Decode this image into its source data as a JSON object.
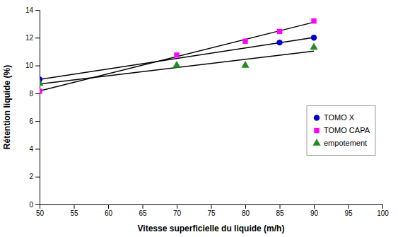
{
  "chart_data": {
    "type": "scatter",
    "xlabel": "Vitesse superficielle du liquide (m/h)",
    "ylabel": "Rétention liquide (%)",
    "xlim": [
      50,
      100
    ],
    "ylim": [
      0,
      14
    ],
    "xticks": [
      50,
      55,
      60,
      65,
      70,
      75,
      80,
      85,
      90,
      95,
      100
    ],
    "yticks": [
      0,
      2,
      4,
      6,
      8,
      10,
      12,
      14
    ],
    "grid": false,
    "legend": "right",
    "series": [
      {
        "name": "TOMO X",
        "type": "scatter",
        "color": "#0000cc",
        "marker": "circle",
        "x": [
          50,
          85,
          90
        ],
        "values": [
          9.0,
          11.65,
          12.0
        ]
      },
      {
        "name": "TOMO CAPA",
        "type": "scatter",
        "color": "#ff00ff",
        "marker": "square",
        "x": [
          50,
          70,
          80,
          85,
          90
        ],
        "values": [
          8.15,
          10.75,
          11.75,
          12.45,
          13.2
        ]
      },
      {
        "name": "empotement",
        "type": "scatter",
        "color": "#228B22",
        "marker": "triangle",
        "x": [
          50,
          70,
          80,
          90
        ],
        "values": [
          8.7,
          10.0,
          10.0,
          11.3
        ]
      },
      {
        "type": "line",
        "color": "#000000",
        "line_style": "solid",
        "x": [
          50,
          90
        ],
        "values": [
          9.001754,
          12.012281
        ]
      },
      {
        "type": "line",
        "color": "#000000",
        "line_style": "solid",
        "x": [
          50,
          90
        ],
        "values": [
          8.16625,
          13.11625
        ]
      },
      {
        "type": "line",
        "color": "#000000",
        "line_style": "solid",
        "x": [
          50,
          90
        ],
        "values": [
          8.662857,
          11.04
        ]
      }
    ]
  }
}
